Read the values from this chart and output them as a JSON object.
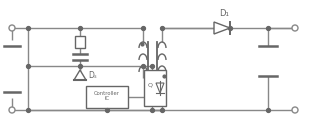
{
  "bg_color": "#ffffff",
  "line_color": "#888888",
  "dark_color": "#666666",
  "lw": 1.0,
  "fig_width": 3.1,
  "fig_height": 1.28,
  "dpi": 100,
  "label_D1": "D₁",
  "label_Ds": "Dₛ",
  "label_Q": "Q",
  "label_controller": "Controller\nIC"
}
